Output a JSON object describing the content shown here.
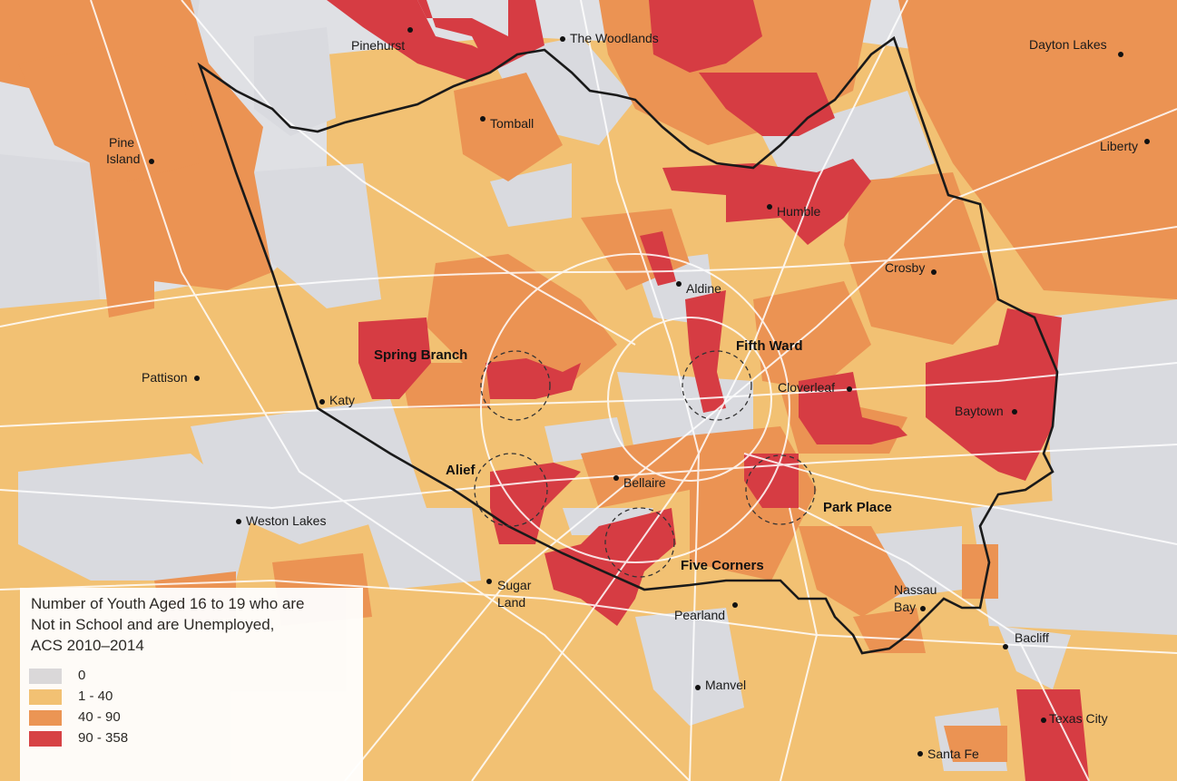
{
  "colors": {
    "background": "#dfe0e4",
    "zero": "#d9dadf",
    "low": "#f2c173",
    "mid": "#eb9353",
    "high": "#d63c43",
    "road": "#ffffff",
    "boundary": "#1a1a1a"
  },
  "cities": [
    {
      "id": "pinehurst",
      "label": "Pinehurst"
    },
    {
      "id": "woodlands",
      "label": "The Woodlands"
    },
    {
      "id": "dayton",
      "label": "Dayton Lakes"
    },
    {
      "id": "tomball",
      "label": "Tomball"
    },
    {
      "id": "liberty",
      "label": "Liberty"
    },
    {
      "id": "pine-island-1",
      "label": "Pine"
    },
    {
      "id": "pine-island-2",
      "label": "Island"
    },
    {
      "id": "humble",
      "label": "Humble"
    },
    {
      "id": "crosby",
      "label": "Crosby"
    },
    {
      "id": "aldine",
      "label": "Aldine"
    },
    {
      "id": "pattison",
      "label": "Pattison"
    },
    {
      "id": "katy",
      "label": "Katy"
    },
    {
      "id": "cloverleaf",
      "label": "Cloverleaf"
    },
    {
      "id": "baytown",
      "label": "Baytown"
    },
    {
      "id": "bellaire",
      "label": "Bellaire"
    },
    {
      "id": "weston",
      "label": "Weston Lakes"
    },
    {
      "id": "sugar-1",
      "label": "Sugar"
    },
    {
      "id": "sugar-2",
      "label": "Land"
    },
    {
      "id": "pearland",
      "label": "Pearland"
    },
    {
      "id": "nassau-1",
      "label": "Nassau"
    },
    {
      "id": "nassau-2",
      "label": "Bay"
    },
    {
      "id": "bacliff",
      "label": "Bacliff"
    },
    {
      "id": "manvel",
      "label": "Manvel"
    },
    {
      "id": "texas-city",
      "label": "Texas City"
    },
    {
      "id": "santa-fe",
      "label": "Santa Fe"
    }
  ],
  "areas": [
    {
      "id": "spring-branch",
      "label": "Spring Branch"
    },
    {
      "id": "fifth-ward",
      "label": "Fifth Ward"
    },
    {
      "id": "alief",
      "label": "Alief"
    },
    {
      "id": "park-place",
      "label": "Park Place"
    },
    {
      "id": "five-corners",
      "label": "Five Corners"
    }
  ],
  "legend": {
    "title_line1": "Number of Youth Aged 16 to 19 who are",
    "title_line2": "Not in School and are Unemployed,",
    "title_line3": "ACS 2010–2014",
    "items": [
      {
        "label": "0",
        "color": "#d9dadf"
      },
      {
        "label": "1 - 40",
        "color": "#f2c173"
      },
      {
        "label": "40 - 90",
        "color": "#eb9353"
      },
      {
        "label": "90 - 358",
        "color": "#d63c43"
      }
    ]
  }
}
